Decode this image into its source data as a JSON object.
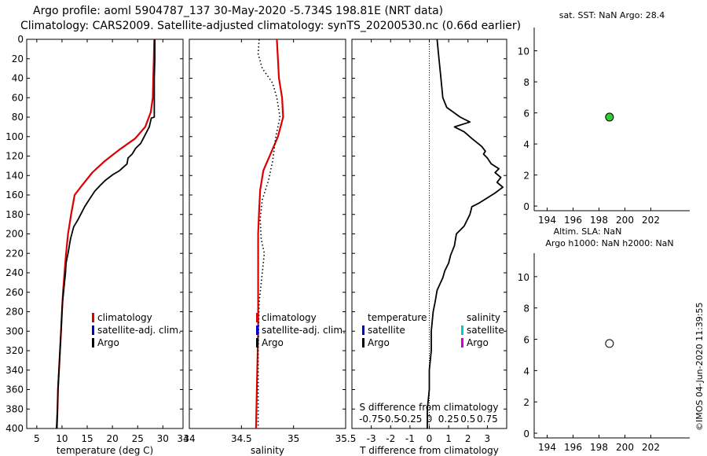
{
  "header": {
    "line1": "Argo profile: aoml 5904787_137 30-May-2020 -5.734S 198.81E (NRT data)",
    "line2": "Climatology: CARS2009. Satellite-adjusted climatology: synTS_20200530.nc (0.66d earlier)"
  },
  "stamp": "©IMOS 04-Jun-2020 11:39:55",
  "colors": {
    "climatology": "#dd0000",
    "satellite_adj": "#0000cc",
    "argo": "#000000",
    "satellite_salinity": "#00cccc",
    "argo_salinity": "#cc00cc",
    "sst_marker": "#33cc33"
  },
  "chart_data": [
    {
      "id": "temperature",
      "type": "line",
      "xlabel": "temperature (deg C)",
      "xlim": [
        3,
        34
      ],
      "xticks": [
        5,
        10,
        15,
        20,
        25,
        30,
        34
      ],
      "ylim": [
        400,
        0
      ],
      "yticks": [
        0,
        20,
        40,
        60,
        80,
        100,
        120,
        140,
        160,
        180,
        200,
        220,
        240,
        260,
        280,
        300,
        320,
        340,
        360,
        380,
        400
      ],
      "legend": [
        "climatology",
        "satellite-adj. clim.",
        "Argo"
      ],
      "series": [
        {
          "name": "climatology",
          "color": "#dd0000",
          "points": [
            [
              28.3,
              0
            ],
            [
              28.2,
              20
            ],
            [
              28.1,
              40
            ],
            [
              28.0,
              60
            ],
            [
              27.6,
              75
            ],
            [
              26.5,
              90
            ],
            [
              24.5,
              102
            ],
            [
              21.5,
              113
            ],
            [
              18.5,
              125
            ],
            [
              16,
              137
            ],
            [
              14,
              150
            ],
            [
              12.5,
              160
            ],
            [
              11.8,
              180
            ],
            [
              11.2,
              200
            ],
            [
              10.8,
              220
            ],
            [
              10.5,
              240
            ],
            [
              10.2,
              260
            ],
            [
              10,
              280
            ],
            [
              9.8,
              300
            ],
            [
              9.6,
              320
            ],
            [
              9.4,
              340
            ],
            [
              9.2,
              360
            ],
            [
              9.1,
              380
            ],
            [
              9.0,
              400
            ]
          ]
        },
        {
          "name": "Argo",
          "color": "#000000",
          "points": [
            [
              28.4,
              0
            ],
            [
              28.4,
              20
            ],
            [
              28.3,
              40
            ],
            [
              28.3,
              60
            ],
            [
              28.3,
              80
            ],
            [
              27.7,
              81
            ],
            [
              27.3,
              90
            ],
            [
              26.3,
              100
            ],
            [
              25.6,
              107
            ],
            [
              24.6,
              112
            ],
            [
              23.9,
              118
            ],
            [
              23.1,
              122
            ],
            [
              22.9,
              128
            ],
            [
              21.4,
              135
            ],
            [
              20.1,
              139
            ],
            [
              18.6,
              145
            ],
            [
              17.6,
              150
            ],
            [
              16.5,
              156
            ],
            [
              15.5,
              164
            ],
            [
              14.5,
              172
            ],
            [
              13.9,
              178
            ],
            [
              13.2,
              185
            ],
            [
              12.3,
              193
            ],
            [
              11.7,
              205
            ],
            [
              11.2,
              220
            ],
            [
              10.8,
              230
            ],
            [
              10.7,
              240
            ],
            [
              10.5,
              250
            ],
            [
              10.3,
              260
            ],
            [
              10.1,
              270
            ],
            [
              10.0,
              280
            ],
            [
              9.8,
              300
            ],
            [
              9.6,
              320
            ],
            [
              9.4,
              340
            ],
            [
              9.2,
              360
            ],
            [
              9.1,
              380
            ],
            [
              8.9,
              400
            ]
          ]
        }
      ]
    },
    {
      "id": "salinity",
      "type": "line",
      "xlabel": "salinity",
      "xlim": [
        34,
        35.5
      ],
      "xticks": [
        "34",
        "34.5",
        "35",
        "35.5"
      ],
      "xtick_values": [
        34,
        34.5,
        35,
        35.5
      ],
      "ylim": [
        400,
        0
      ],
      "legend": [
        "climatology",
        "satellite-adj. clim.",
        "Argo"
      ],
      "series": [
        {
          "name": "climatology",
          "color": "#dd0000",
          "points": [
            [
              34.84,
              0
            ],
            [
              34.85,
              20
            ],
            [
              34.86,
              40
            ],
            [
              34.89,
              60
            ],
            [
              34.9,
              80
            ],
            [
              34.85,
              100
            ],
            [
              34.77,
              120
            ],
            [
              34.71,
              135
            ],
            [
              34.68,
              155
            ],
            [
              34.67,
              175
            ],
            [
              34.66,
              200
            ],
            [
              34.66,
              250
            ],
            [
              34.66,
              300
            ],
            [
              34.65,
              350
            ],
            [
              34.64,
              400
            ]
          ]
        },
        {
          "name": "Argo",
          "color": "#000000",
          "dotted": true,
          "points": [
            [
              34.67,
              0
            ],
            [
              34.66,
              15
            ],
            [
              34.7,
              30
            ],
            [
              34.8,
              45
            ],
            [
              34.84,
              60
            ],
            [
              34.87,
              80
            ],
            [
              34.83,
              100
            ],
            [
              34.8,
              125
            ],
            [
              34.76,
              145
            ],
            [
              34.7,
              165
            ],
            [
              34.68,
              185
            ],
            [
              34.69,
              205
            ],
            [
              34.72,
              220
            ],
            [
              34.7,
              240
            ],
            [
              34.67,
              270
            ],
            [
              34.66,
              320
            ],
            [
              34.66,
              360
            ],
            [
              34.66,
              400
            ]
          ]
        }
      ]
    },
    {
      "id": "difference",
      "type": "line",
      "xlabel": "T difference from climatology",
      "title_inner": "S difference from climatology",
      "xlim": [
        -4,
        4
      ],
      "xticks": [
        "-3",
        "-2",
        "-1",
        "0",
        "1",
        "2",
        "3"
      ],
      "xtick_values": [
        -3,
        -2,
        -1,
        0,
        1,
        2,
        3
      ],
      "sticks": [
        "-0.75",
        "-0.5",
        "-0.25",
        "0",
        "0.25",
        "0.5",
        "0.75"
      ],
      "ylim": [
        400,
        0
      ],
      "legend_left_title": "temperature",
      "legend_left": [
        "satellite",
        "Argo"
      ],
      "legend_right_title": "salinity",
      "legend_right": [
        "satellite",
        "Argo"
      ],
      "series": [
        {
          "name": "T diff",
          "color": "#000000",
          "points": [
            [
              0.4,
              0
            ],
            [
              0.5,
              20
            ],
            [
              0.6,
              40
            ],
            [
              0.7,
              60
            ],
            [
              0.9,
              70
            ],
            [
              1.6,
              80
            ],
            [
              2.1,
              85
            ],
            [
              1.3,
              90
            ],
            [
              1.8,
              95
            ],
            [
              2.2,
              102
            ],
            [
              2.7,
              110
            ],
            [
              2.9,
              115
            ],
            [
              2.8,
              118
            ],
            [
              3.0,
              122
            ],
            [
              3.2,
              128
            ],
            [
              3.6,
              133
            ],
            [
              3.4,
              137
            ],
            [
              3.7,
              142
            ],
            [
              3.5,
              147
            ],
            [
              3.8,
              152
            ],
            [
              3.4,
              158
            ],
            [
              2.6,
              168
            ],
            [
              2.2,
              172
            ],
            [
              2.1,
              180
            ],
            [
              1.8,
              192
            ],
            [
              1.4,
              200
            ],
            [
              1.3,
              212
            ],
            [
              1.1,
              222
            ],
            [
              1.0,
              230
            ],
            [
              0.8,
              238
            ],
            [
              0.7,
              245
            ],
            [
              0.4,
              258
            ],
            [
              0.3,
              270
            ],
            [
              0.2,
              280
            ],
            [
              0.1,
              300
            ],
            [
              0.1,
              320
            ],
            [
              0.0,
              340
            ],
            [
              0.0,
              360
            ],
            [
              -0.1,
              380
            ],
            [
              -0.1,
              400
            ]
          ]
        }
      ]
    },
    {
      "id": "sst",
      "type": "scatter",
      "title": "sat. SST: NaN Argo: 28.4",
      "xlim": [
        193,
        205
      ],
      "xticks": [
        194,
        196,
        198,
        200,
        202
      ],
      "ylim": [
        -0.3,
        11.5
      ],
      "yticks": [
        0,
        2,
        4,
        6,
        8,
        10
      ],
      "points": [
        {
          "x": 198.81,
          "y": 5.73,
          "fill": "#33cc33"
        }
      ]
    },
    {
      "id": "sla",
      "type": "scatter",
      "title": "Altim. SLA: NaN",
      "subtitle": "Argo h1000: NaN h2000: NaN",
      "xlim": [
        193,
        205
      ],
      "xticks": [
        194,
        196,
        198,
        200,
        202
      ],
      "ylim": [
        -0.3,
        11.5
      ],
      "yticks": [
        0,
        2,
        4,
        6,
        8,
        10
      ],
      "points": [
        {
          "x": 198.81,
          "y": 5.73,
          "fill": "#ffffff"
        }
      ]
    }
  ]
}
